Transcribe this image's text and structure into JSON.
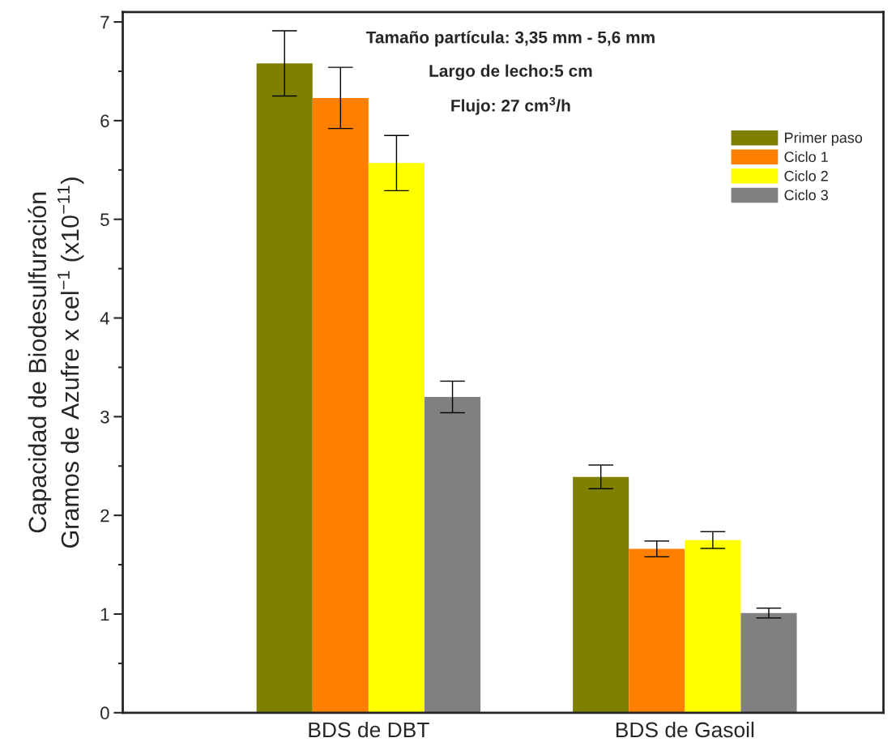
{
  "chart_data": {
    "type": "bar",
    "ylabel": "Capacidad de Biodesulfuración\nGramos de Azufre x cel$^{−1}$ (x10$^{−11}$)",
    "categories": [
      "BDS de DBT",
      "BDS de Gasoil"
    ],
    "series": [
      {
        "name": "Primer paso",
        "color": "#808000",
        "values": [
          6.58,
          2.39
        ],
        "errors": [
          0.33,
          0.12
        ]
      },
      {
        "name": "Ciclo 1",
        "color": "#ff8000",
        "values": [
          6.23,
          1.66
        ],
        "errors": [
          0.31,
          0.08
        ]
      },
      {
        "name": "Ciclo 2",
        "color": "#ffff00",
        "values": [
          5.57,
          1.75
        ],
        "errors": [
          0.28,
          0.085
        ]
      },
      {
        "name": "Ciclo 3",
        "color": "#808080",
        "values": [
          3.2,
          1.01
        ],
        "errors": [
          0.16,
          0.05
        ]
      }
    ],
    "annotations": [
      "Tamaño partícula: 3,35 mm - 5,6 mm",
      "Largo de lecho:5 cm",
      "Flujo: 27 cm$^{3}$/h"
    ],
    "ylim": [
      0,
      7.1
    ],
    "yticks": [
      0,
      1,
      2,
      3,
      4,
      5,
      6,
      7
    ],
    "legend": "top right",
    "grid": false
  }
}
